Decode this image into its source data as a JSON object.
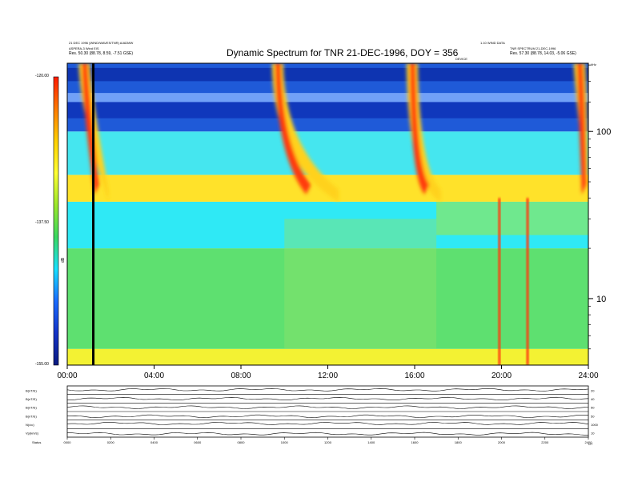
{
  "header": {
    "title": "Dynamic Spectrum for TNR 21-DEC-1996, DOY = 356",
    "left_line1": "21 DEC 1996 (WIND/WAVES/TNR) A/ADMW",
    "left_line2": "ASPERA-3 Wind EIS",
    "left_line3": "Res. 50.30 (88.78, 8.59, -7.51 GSE)",
    "right_line1": "1.10 WIND DATA",
    "right_line2": "TNR SPECTRUM 21-DEC-1996",
    "right_line3": "Res. 57.30 (88.78, 14.03, -5.06 GSE)",
    "freq_unit": "kHz",
    "marker_label": "DEVICE"
  },
  "colorbar": {
    "top_label": "-120.00",
    "mid_label": "-137.50",
    "bottom_label": "-155.00",
    "axis_label": "dB",
    "stops": [
      "#ff1a00",
      "#ff7a00",
      "#ffd000",
      "#ffff33",
      "#9be82a",
      "#39d860",
      "#18e0ff",
      "#1a6cff",
      "#1433c8",
      "#0a1a80"
    ]
  },
  "chart_data": [
    {
      "type": "heatmap",
      "title": "Dynamic Spectrum for TNR 21-DEC-1996, DOY = 356",
      "x_ticks": [
        "00:00",
        "04:00",
        "08:00",
        "12:00",
        "16:00",
        "20:00",
        "24:00"
      ],
      "x_range_hours": [
        0,
        24
      ],
      "y_scale": "log",
      "y_ticks": [
        {
          "value": 100,
          "label": "100"
        },
        {
          "value": 10,
          "label": "10"
        }
      ],
      "y_range_khz": [
        4,
        256
      ],
      "color_range_db": [
        -155.0,
        -120.0
      ],
      "bands": [
        {
          "name": "background_low",
          "from_khz": 4,
          "to_khz": 5,
          "color": "#f3f233"
        },
        {
          "name": "quiet_green",
          "from_khz": 5,
          "to_khz": 20,
          "color": "#5ee070"
        },
        {
          "name": "cyan_band",
          "from_khz": 20,
          "to_khz": 38,
          "color": "#2fe9f5"
        },
        {
          "name": "plasma_line",
          "from_khz": 38,
          "to_khz": 55,
          "color": "#ffe22a"
        },
        {
          "name": "upper_cyan",
          "from_khz": 55,
          "to_khz": 100,
          "color": "#45e6ef"
        },
        {
          "name": "upper_blue",
          "from_khz": 100,
          "to_khz": 256,
          "color": "#1f5ad8"
        }
      ],
      "bursts": [
        {
          "start_hr": 0.6,
          "end_hr": 1.9,
          "peak_khz": 160
        },
        {
          "start_hr": 9.5,
          "end_hr": 12.5,
          "peak_khz": 80
        },
        {
          "start_hr": 15.7,
          "end_hr": 17.2,
          "peak_khz": 60
        },
        {
          "start_hr": 23.4,
          "end_hr": 24.0,
          "peak_khz": 200
        }
      ],
      "spikes_hr": [
        19.9,
        21.2
      ],
      "marker_hr": 1.2
    },
    {
      "type": "line",
      "x_ticks": [
        "0000",
        "0200",
        "0400",
        "0600",
        "0800",
        "1000",
        "1200",
        "1400",
        "1600",
        "1800",
        "2000",
        "2200",
        "2400"
      ],
      "series": [
        {
          "name": "B(nT/E)",
          "right_label": "20",
          "level": 0.55
        },
        {
          "name": "B(nT/E)",
          "right_label": "40",
          "level": 0.5
        },
        {
          "name": "B(nT/E)",
          "right_label": "50",
          "level": 0.5
        },
        {
          "name": "B(nT/E)",
          "right_label": "50",
          "level": 0.45
        },
        {
          "name": "N(/cc)",
          "right_label": "1000",
          "level": 0.6
        },
        {
          "name": "Vp(km/s)",
          "right_label": "10",
          "level": 0.4
        }
      ],
      "footer_left": "Status",
      "footer_unit": "UT"
    }
  ]
}
